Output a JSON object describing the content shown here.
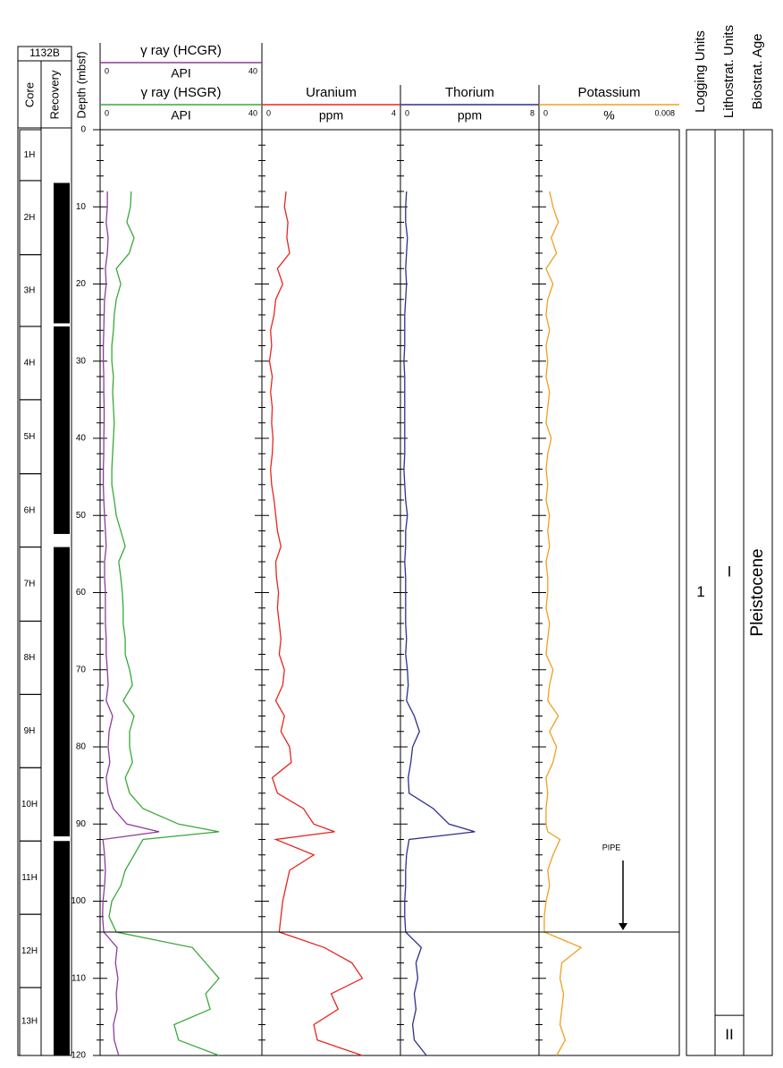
{
  "chart_data": {
    "type": "well-log",
    "site": "1132B",
    "core_header": "Core",
    "recovery_header": "Recovery",
    "ylabel": "Depth (mbsf)",
    "ylim": [
      0,
      120
    ],
    "yticks": [
      0,
      10,
      20,
      30,
      40,
      50,
      60,
      70,
      80,
      90,
      100,
      110,
      120
    ],
    "minor_yticks": [
      2,
      4,
      6,
      8,
      12,
      14,
      16,
      18,
      22,
      24,
      26,
      28,
      32,
      34,
      36,
      38,
      42,
      44,
      46,
      48,
      52,
      54,
      56,
      58,
      62,
      64,
      66,
      68,
      72,
      74,
      76,
      78,
      82,
      84,
      86,
      88,
      92,
      94,
      96,
      98,
      102,
      104,
      106,
      108,
      112,
      114,
      116,
      118
    ],
    "cores": [
      {
        "label": "1H",
        "top": 0,
        "bottom": 6.6
      },
      {
        "label": "2H",
        "top": 6.6,
        "bottom": 16.2
      },
      {
        "label": "3H",
        "top": 16.2,
        "bottom": 25.5
      },
      {
        "label": "4H",
        "top": 25.5,
        "bottom": 35.0
      },
      {
        "label": "5H",
        "top": 35.0,
        "bottom": 44.6
      },
      {
        "label": "6H",
        "top": 44.6,
        "bottom": 54.1
      },
      {
        "label": "7H",
        "top": 54.1,
        "bottom": 63.7
      },
      {
        "label": "8H",
        "top": 63.7,
        "bottom": 73.2
      },
      {
        "label": "9H",
        "top": 73.2,
        "bottom": 82.7
      },
      {
        "label": "10H",
        "top": 82.7,
        "bottom": 92.2
      },
      {
        "label": "11H",
        "top": 92.2,
        "bottom": 101.7
      },
      {
        "label": "12H",
        "top": 101.7,
        "bottom": 111.2
      },
      {
        "label": "13H",
        "top": 111.2,
        "bottom": 120
      }
    ],
    "recovery": [
      [
        6.9,
        25.1
      ],
      [
        25.5,
        52.4
      ],
      [
        54.1,
        91.6
      ],
      [
        92.2,
        120
      ]
    ],
    "depth": [
      8,
      10,
      12,
      14,
      16,
      18,
      20,
      22,
      24,
      26,
      28,
      30,
      32,
      34,
      36,
      38,
      40,
      42,
      44,
      46,
      48,
      50,
      52,
      54,
      56,
      58,
      60,
      62,
      64,
      66,
      68,
      70,
      72,
      74,
      76,
      78,
      80,
      82,
      84,
      86,
      88,
      90,
      91,
      92,
      94,
      96,
      98,
      100,
      102,
      104,
      106,
      108,
      110,
      112,
      114,
      116,
      118,
      120
    ],
    "tracks": [
      {
        "curves": [
          {
            "name": "γ ray (HCGR)",
            "unit": "API",
            "color": "#8e3a9e",
            "xlim": [
              0,
              40
            ],
            "xticks": [
              0,
              40
            ],
            "values": [
              1.8,
              1.8,
              1.5,
              2.0,
              1.8,
              1.3,
              1.5,
              1.1,
              1.0,
              0.9,
              0.8,
              0.8,
              0.9,
              0.9,
              1.0,
              1.0,
              0.9,
              0.9,
              0.8,
              0.8,
              0.9,
              1.1,
              1.3,
              1.5,
              1.1,
              1.1,
              1.3,
              1.3,
              1.3,
              1.5,
              1.5,
              1.8,
              2.0,
              1.5,
              3.1,
              2.2,
              2.0,
              2.4,
              1.5,
              2.0,
              3.3,
              6.6,
              14.6,
              0.7,
              1.1,
              1.3,
              1.1,
              0.7,
              0.6,
              0.9,
              4.2,
              3.8,
              4.4,
              4.0,
              4.2,
              3.3,
              3.5,
              4.6
            ]
          },
          {
            "name": "γ ray (HSGR)",
            "unit": "API",
            "color": "#3aa83a",
            "xlim": [
              0,
              40
            ],
            "xticks": [
              0,
              40
            ],
            "values": [
              7.7,
              7.5,
              6.6,
              8.4,
              7.2,
              4.0,
              5.1,
              4.0,
              3.5,
              3.3,
              2.9,
              2.9,
              3.3,
              3.1,
              3.3,
              3.5,
              3.3,
              3.1,
              2.9,
              2.9,
              3.5,
              4.0,
              5.1,
              6.2,
              4.6,
              5.1,
              5.5,
              5.7,
              5.7,
              6.2,
              6.2,
              7.3,
              8.0,
              5.7,
              8.4,
              7.3,
              7.3,
              8.0,
              6.2,
              7.3,
              10.6,
              19.4,
              29.4,
              10.6,
              8.4,
              6.2,
              5.1,
              2.9,
              2.2,
              4.0,
              22.8,
              26.1,
              29.4,
              26.1,
              27.2,
              18.3,
              19.4,
              29.4
            ]
          }
        ]
      },
      {
        "curves": [
          {
            "name": "Uranium",
            "unit": "ppm",
            "color": "#e8251f",
            "xlim": [
              0,
              4
            ],
            "xticks": [
              0,
              4
            ],
            "values": [
              0.7,
              0.65,
              0.75,
              0.72,
              0.8,
              0.45,
              0.6,
              0.4,
              0.35,
              0.25,
              0.28,
              0.22,
              0.3,
              0.25,
              0.3,
              0.28,
              0.32,
              0.3,
              0.25,
              0.28,
              0.35,
              0.4,
              0.45,
              0.55,
              0.4,
              0.42,
              0.48,
              0.45,
              0.5,
              0.55,
              0.5,
              0.65,
              0.6,
              0.4,
              0.65,
              0.55,
              0.8,
              0.85,
              0.3,
              0.45,
              1.2,
              1.5,
              2.1,
              0.4,
              1.5,
              0.8,
              0.7,
              0.6,
              0.55,
              0.5,
              1.8,
              2.6,
              2.9,
              2.0,
              2.2,
              1.5,
              1.6,
              2.9
            ]
          }
        ]
      },
      {
        "curves": [
          {
            "name": "Thorium",
            "unit": "ppm",
            "color": "#2e2e8e",
            "xlim": [
              0,
              8
            ],
            "xticks": [
              0,
              8
            ],
            "values": [
              0.35,
              0.3,
              0.3,
              0.4,
              0.35,
              0.3,
              0.35,
              0.3,
              0.25,
              0.25,
              0.25,
              0.2,
              0.25,
              0.25,
              0.25,
              0.25,
              0.25,
              0.25,
              0.2,
              0.25,
              0.3,
              0.4,
              0.3,
              0.3,
              0.25,
              0.3,
              0.3,
              0.3,
              0.3,
              0.35,
              0.3,
              0.4,
              0.45,
              0.35,
              0.8,
              1.1,
              0.7,
              0.6,
              0.45,
              0.5,
              1.9,
              2.8,
              4.3,
              0.5,
              0.35,
              0.3,
              0.3,
              0.25,
              0.25,
              0.3,
              1.2,
              0.9,
              1.0,
              0.8,
              0.9,
              0.7,
              0.8,
              1.5
            ]
          }
        ]
      },
      {
        "curves": [
          {
            "name": "Potassium",
            "unit": "%",
            "color": "#f0a020",
            "xlim": [
              0,
              0.008
            ],
            "xticks": [
              0,
              0.008
            ],
            "values": [
              0.0006,
              0.0008,
              0.0011,
              0.0007,
              0.001,
              0.0004,
              0.0008,
              0.0005,
              0.0004,
              0.0006,
              0.0004,
              0.0005,
              0.0004,
              0.0006,
              0.0005,
              0.0004,
              0.0007,
              0.0005,
              0.0004,
              0.0005,
              0.0004,
              0.0006,
              0.0005,
              0.0006,
              0.0004,
              0.0005,
              0.0005,
              0.0004,
              0.0006,
              0.0005,
              0.0004,
              0.0008,
              0.0006,
              0.0005,
              0.0011,
              0.0006,
              0.001,
              0.0008,
              0.0004,
              0.0005,
              0.0004,
              0.0004,
              0.0005,
              0.0012,
              0.0008,
              0.0005,
              0.0006,
              0.0004,
              0.0003,
              0.0003,
              0.0024,
              0.0013,
              0.0012,
              0.0014,
              0.0013,
              0.0012,
              0.0015,
              0.001
            ]
          }
        ]
      }
    ],
    "pipe": {
      "label": "PIPE",
      "depth": 104
    },
    "columns": [
      {
        "title": "Logging Units",
        "units": [
          {
            "label": "1",
            "top": 0,
            "bottom": 120
          }
        ]
      },
      {
        "title": "Lithostrat. Units",
        "units": [
          {
            "label": "I",
            "top": 0,
            "bottom": 114.8
          },
          {
            "label": "II",
            "top": 114.8,
            "bottom": 120
          }
        ]
      },
      {
        "title": "Biostrat. Age",
        "units": [
          {
            "label": "Pleistocene",
            "top": 0,
            "bottom": 120
          }
        ]
      }
    ]
  }
}
